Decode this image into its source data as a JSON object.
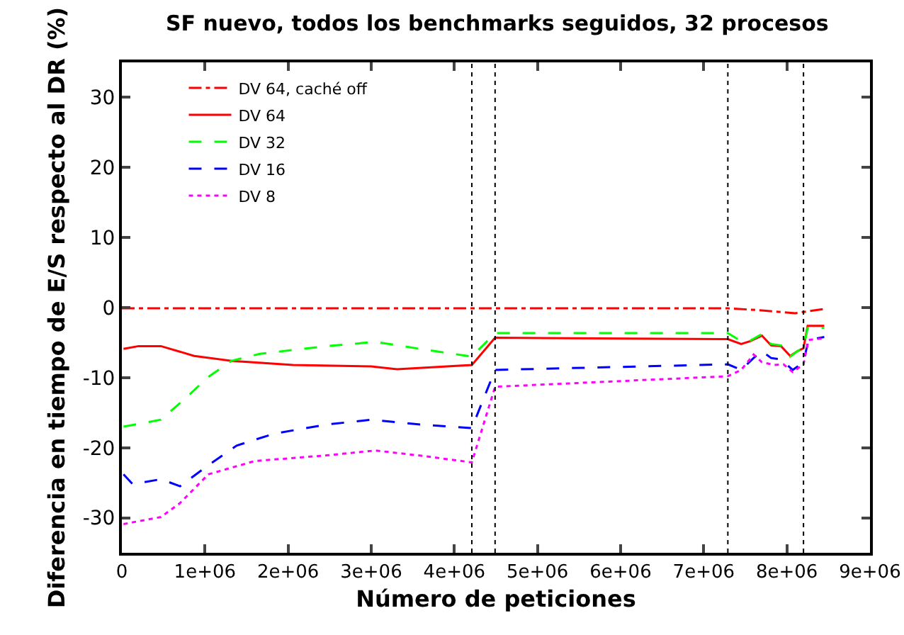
{
  "chart_data": {
    "type": "line",
    "title": "SF nuevo, todos los benchmarks seguidos, 32 procesos",
    "xlabel": "Número de peticiones",
    "ylabel": "Diferencia en tiempo de E/S respecto al DR (%)",
    "xlim": [
      0,
      9000000
    ],
    "ylim": [
      -35,
      35
    ],
    "xticks": [
      {
        "value": 0,
        "label": "0"
      },
      {
        "value": 1000000,
        "label": "1e+06"
      },
      {
        "value": 2000000,
        "label": "2e+06"
      },
      {
        "value": 3000000,
        "label": "3e+06"
      },
      {
        "value": 4000000,
        "label": "4e+06"
      },
      {
        "value": 5000000,
        "label": "5e+06"
      },
      {
        "value": 6000000,
        "label": "6e+06"
      },
      {
        "value": 7000000,
        "label": "7e+06"
      },
      {
        "value": 8000000,
        "label": "8e+06"
      },
      {
        "value": 9000000,
        "label": "9e+06"
      }
    ],
    "yticks": [
      -30,
      -20,
      -10,
      0,
      10,
      20,
      30
    ],
    "grid": false,
    "legend": "top left",
    "marker": "none",
    "ref_lines": [
      {
        "axis": "x",
        "value": 4210000,
        "color": "#000000",
        "line_style": "dotted"
      },
      {
        "axis": "x",
        "value": 4490000,
        "color": "#000000",
        "line_style": "dotted"
      },
      {
        "axis": "x",
        "value": 7290000,
        "color": "#000000",
        "line_style": "dotted"
      },
      {
        "axis": "x",
        "value": 8200000,
        "color": "#000000",
        "line_style": "dotted"
      }
    ],
    "series": [
      {
        "name": "DV 64, caché off",
        "color": "#ff0000",
        "line_style": "dashdot",
        "x": [
          0,
          1000000,
          2000000,
          3000000,
          4000000,
          5000000,
          6000000,
          7000000,
          7290000,
          7700000,
          8100000,
          8450000
        ],
        "values": [
          -0.1,
          -0.1,
          -0.1,
          -0.1,
          -0.1,
          -0.1,
          -0.1,
          -0.1,
          -0.1,
          -0.4,
          -0.8,
          -0.2
        ]
      },
      {
        "name": "DV 64",
        "color": "#ff0000",
        "line_style": "solid",
        "x": [
          20000,
          200000,
          470000,
          870000,
          1320000,
          2060000,
          3000000,
          3310000,
          4210000,
          4490000,
          7290000,
          7450000,
          7560000,
          7700000,
          7810000,
          7930000,
          8040000,
          8130000,
          8200000,
          8250000,
          8450000
        ],
        "values": [
          -5.9,
          -5.5,
          -5.5,
          -6.9,
          -7.6,
          -8.2,
          -8.4,
          -8.8,
          -8.2,
          -4.3,
          -4.5,
          -5.2,
          -4.8,
          -4.0,
          -5.4,
          -5.5,
          -6.9,
          -6.2,
          -5.8,
          -2.6,
          -2.6
        ]
      },
      {
        "name": "DV 32",
        "color": "#00ff00",
        "line_style": "dashed",
        "x": [
          20000,
          470000,
          760000,
          1040000,
          1320000,
          1660000,
          2460000,
          3050000,
          3590000,
          4210000,
          4490000,
          7290000,
          7450000,
          7560000,
          7700000,
          7810000,
          7930000,
          8040000,
          8130000,
          8200000,
          8250000,
          8450000
        ],
        "values": [
          -17,
          -16,
          -13,
          -9.9,
          -7.6,
          -6.6,
          -5.5,
          -4.9,
          -5.9,
          -7.0,
          -3.65,
          -3.65,
          -4.8,
          -4.7,
          -3.8,
          -5.2,
          -5.4,
          -7.0,
          -6.2,
          -5.8,
          -2.9,
          -2.9
        ]
      },
      {
        "name": "DV 16",
        "color": "#0000ff",
        "line_style": "dashed",
        "x": [
          20000,
          130000,
          470000,
          700000,
          1040000,
          1380000,
          1830000,
          2460000,
          3000000,
          3590000,
          4210000,
          4490000,
          7290000,
          7450000,
          7600000,
          7700000,
          7810000,
          7930000,
          8070000,
          8200000,
          8260000,
          8450000
        ],
        "values": [
          -23.8,
          -25.2,
          -24.5,
          -25.5,
          -22.5,
          -19.7,
          -18,
          -16.7,
          -16,
          -16.7,
          -17.2,
          -8.9,
          -8.1,
          -8.9,
          -7.2,
          -6.2,
          -7.2,
          -7.4,
          -8.9,
          -7.8,
          -4.6,
          -4.2
        ]
      },
      {
        "name": "DV 8",
        "color": "#ff00ff",
        "line_style": "dotted",
        "x": [
          20000,
          470000,
          700000,
          1040000,
          1600000,
          2460000,
          3050000,
          3640000,
          4210000,
          4490000,
          7290000,
          7450000,
          7600000,
          7700000,
          7850000,
          7960000,
          8070000,
          8200000,
          8260000,
          8450000
        ],
        "values": [
          -30.9,
          -29.9,
          -27.9,
          -23.8,
          -21.9,
          -21.1,
          -20.4,
          -21.2,
          -22.1,
          -11.3,
          -9.8,
          -8.9,
          -6.7,
          -7.8,
          -8.2,
          -8.1,
          -9.2,
          -8.1,
          -4.6,
          -4.4
        ]
      }
    ]
  }
}
